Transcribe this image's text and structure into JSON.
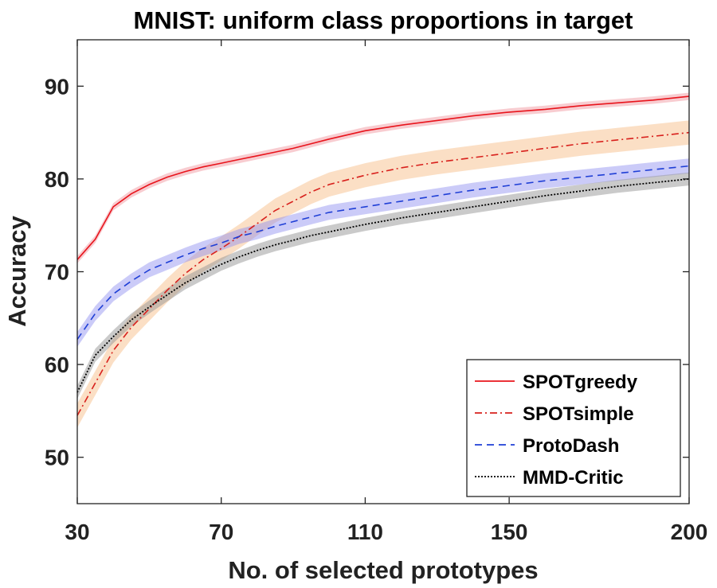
{
  "chart_data": {
    "type": "line",
    "title": "MNIST: uniform class proportions in target",
    "xlabel": "No. of selected prototypes",
    "ylabel": "Accuracy",
    "xlim": [
      30,
      200
    ],
    "ylim": [
      45,
      95
    ],
    "xticks": [
      30,
      70,
      110,
      150,
      200
    ],
    "yticks": [
      50,
      60,
      70,
      80,
      90
    ],
    "grid": false,
    "legend_position": "bottom-right",
    "x": [
      30,
      35,
      40,
      45,
      50,
      55,
      60,
      65,
      70,
      75,
      80,
      85,
      90,
      95,
      100,
      110,
      120,
      130,
      140,
      150,
      160,
      170,
      180,
      190,
      200
    ],
    "series": [
      {
        "name": "SPOTgreedy",
        "color": "#e8141c",
        "style": "solid",
        "values": [
          71.3,
          73.5,
          77.0,
          78.4,
          79.4,
          80.2,
          80.8,
          81.3,
          81.7,
          82.1,
          82.5,
          82.9,
          83.3,
          83.8,
          84.3,
          85.2,
          85.8,
          86.3,
          86.8,
          87.2,
          87.5,
          87.9,
          88.2,
          88.5,
          88.9
        ],
        "band": 0.4
      },
      {
        "name": "SPOTsimple",
        "color": "#d8201c",
        "style": "dashdot",
        "values": [
          54.5,
          58.0,
          61.5,
          64.0,
          66.0,
          68.0,
          69.8,
          71.3,
          72.5,
          73.8,
          75.2,
          76.6,
          77.6,
          78.6,
          79.4,
          80.4,
          81.2,
          81.8,
          82.3,
          82.8,
          83.3,
          83.8,
          84.2,
          84.6,
          85.0
        ],
        "band": 1.3
      },
      {
        "name": "ProtoDash",
        "color": "#1f3fd6",
        "style": "dashed",
        "values": [
          62.7,
          65.5,
          67.6,
          69.0,
          70.2,
          71.0,
          71.8,
          72.5,
          73.1,
          73.8,
          74.3,
          74.9,
          75.4,
          75.9,
          76.4,
          77.0,
          77.6,
          78.2,
          78.8,
          79.3,
          79.8,
          80.2,
          80.6,
          81.0,
          81.4
        ],
        "band": 0.8
      },
      {
        "name": "MMD-Critic",
        "color": "#000000",
        "style": "dotted",
        "values": [
          57.0,
          61.0,
          63.0,
          64.8,
          66.2,
          67.5,
          68.8,
          69.8,
          70.8,
          71.6,
          72.3,
          72.9,
          73.4,
          73.9,
          74.3,
          75.1,
          75.8,
          76.4,
          77.0,
          77.6,
          78.2,
          78.7,
          79.2,
          79.6,
          80.0
        ],
        "band": 0.7
      }
    ]
  }
}
